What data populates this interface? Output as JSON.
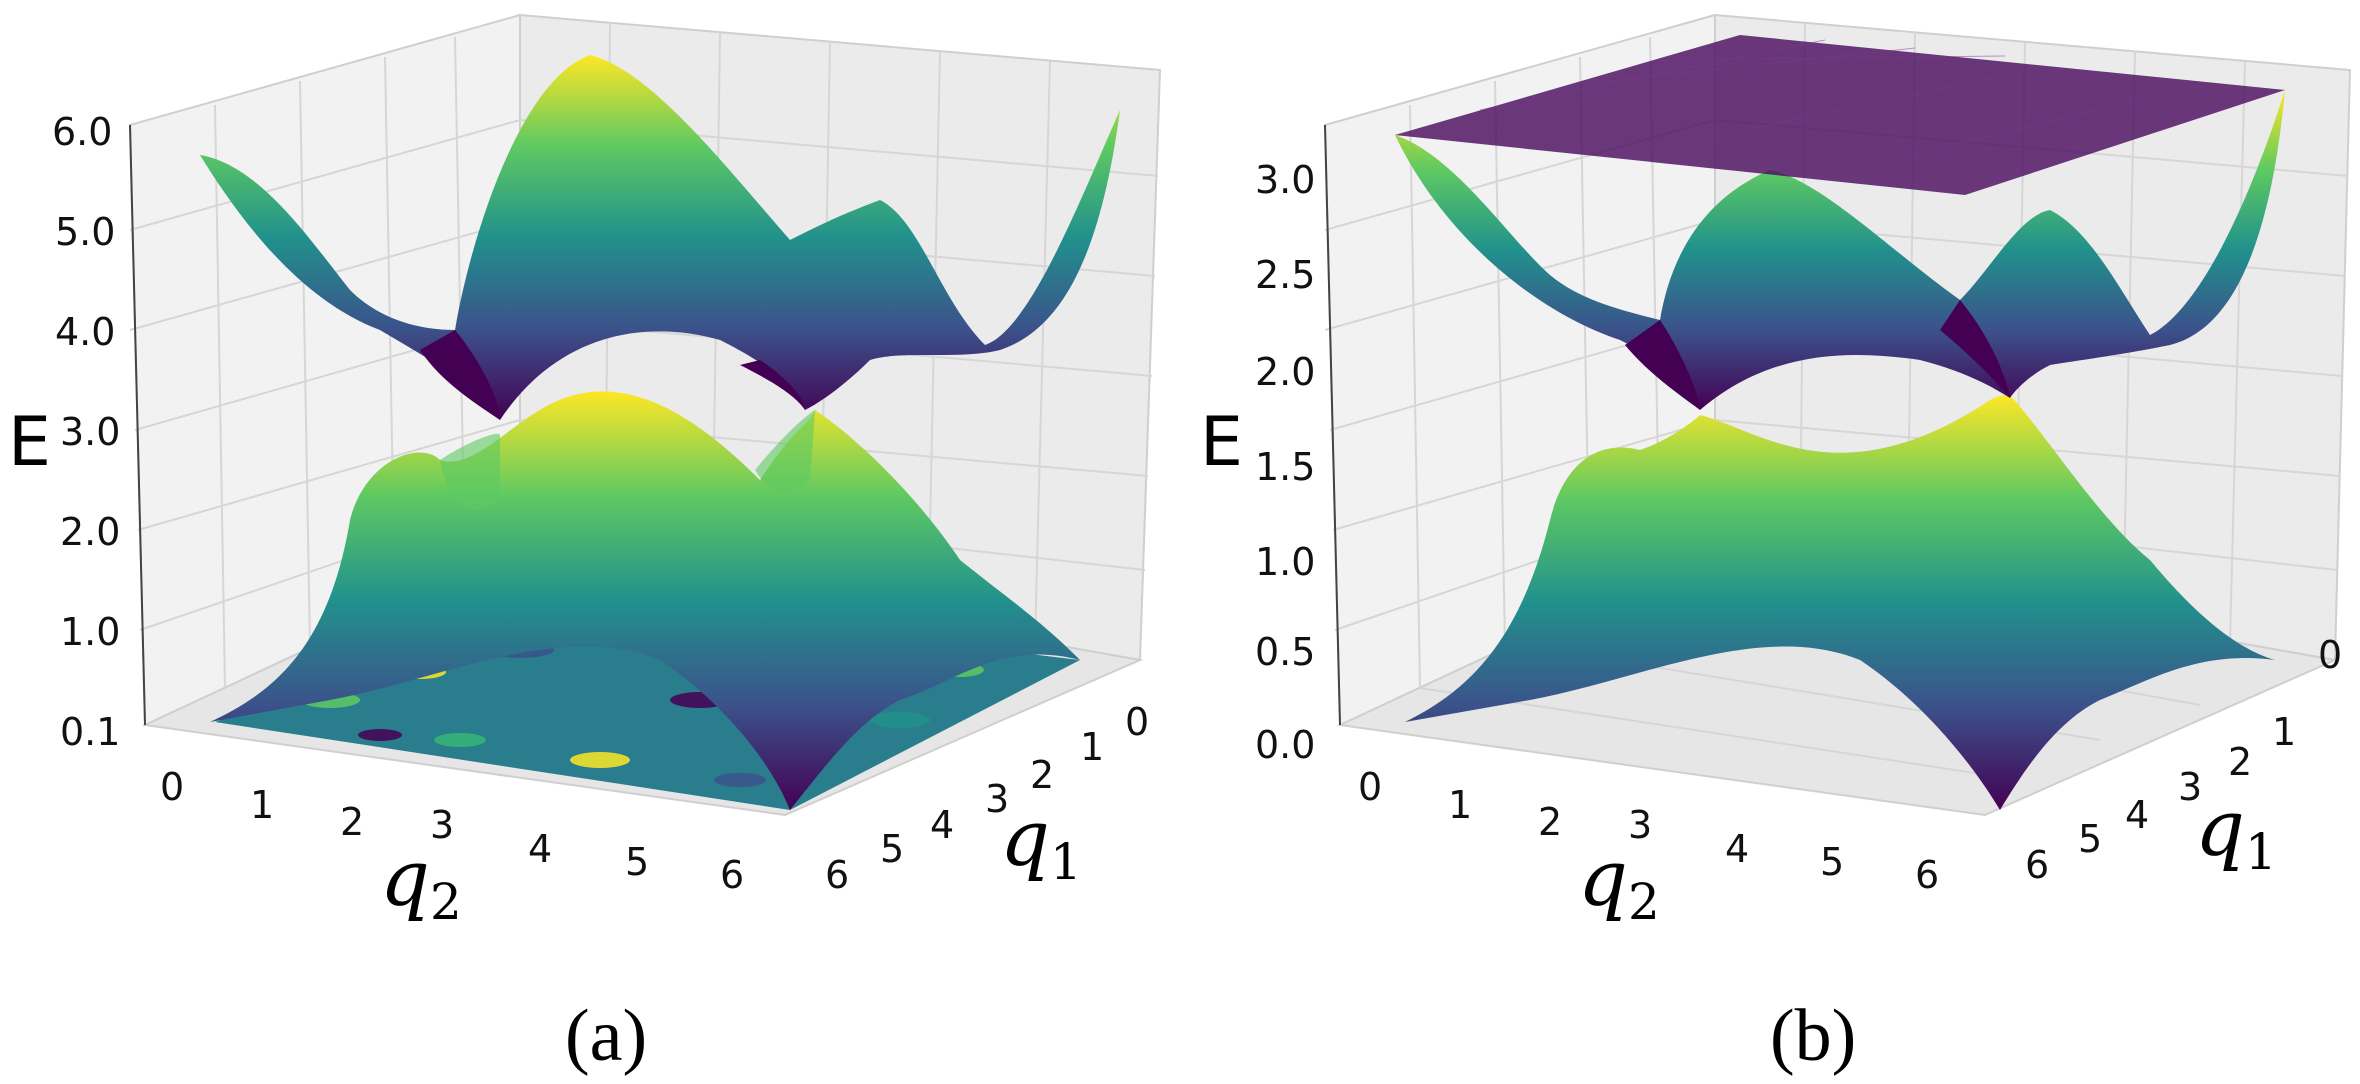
{
  "chart_data": [
    {
      "type": "surface3d",
      "panel_label": "(a)",
      "xlabel": "q",
      "xlabel_sub": "2",
      "ylabel": "q",
      "ylabel_sub": "1",
      "zlabel": "E",
      "xlim": [
        0,
        6.283
      ],
      "ylim": [
        0,
        6.283
      ],
      "zlim": [
        0.1,
        6.0
      ],
      "x_ticks": [
        "0",
        "1",
        "2",
        "3",
        "4",
        "5",
        "6"
      ],
      "y_ticks": [
        "0",
        "1",
        "2",
        "3",
        "4",
        "5",
        "6"
      ],
      "z_ticks": [
        "0.1",
        "1.0",
        "2.0",
        "3.0",
        "4.0",
        "5.0",
        "6.0"
      ],
      "z_tick_values": [
        0.1,
        1.0,
        2.0,
        3.0,
        4.0,
        5.0,
        6.0
      ],
      "surfaces": [
        {
          "name": "",
          "description": "upper band",
          "min": 3.0,
          "max": 6.0
        },
        {
          "name": "",
          "description": "lower band",
          "min": 0.1,
          "max": 3.0
        },
        {
          "name": "",
          "description": "noisy flat band",
          "value": 0.1
        }
      ],
      "dirac_points_E": 3.0,
      "colormap": "viridis",
      "colors": [
        "#440154",
        "#3b528b",
        "#21918c",
        "#5ec962",
        "#fde725"
      ],
      "grid": true
    },
    {
      "type": "surface3d",
      "panel_label": "(b)",
      "xlabel": "q",
      "xlabel_sub": "2",
      "ylabel": "q",
      "ylabel_sub": "1",
      "zlabel": "E",
      "xlim": [
        0,
        6.283
      ],
      "ylim": [
        0,
        6.283
      ],
      "zlim": [
        0.0,
        3.2
      ],
      "x_ticks": [
        "0",
        "1",
        "2",
        "3",
        "4",
        "5",
        "6"
      ],
      "y_ticks": [
        "0",
        "1",
        "2",
        "3",
        "4",
        "5",
        "6"
      ],
      "z_ticks": [
        "0.0",
        "0.5",
        "1.0",
        "1.5",
        "2.0",
        "2.5",
        "3.0"
      ],
      "z_tick_values": [
        0.0,
        0.5,
        1.0,
        1.5,
        2.0,
        2.5,
        3.0
      ],
      "surfaces": [
        {
          "name": "",
          "description": "flat band",
          "value": 3.2
        },
        {
          "name": "",
          "description": "upper band",
          "min": 1.6,
          "max": 3.15
        },
        {
          "name": "",
          "description": "lower band",
          "min": 0.0,
          "max": 1.6
        }
      ],
      "dirac_points_E": 1.6,
      "colormap": "viridis",
      "colors": [
        "#440154",
        "#3b528b",
        "#21918c",
        "#5ec962",
        "#fde725"
      ],
      "grid": true
    }
  ]
}
